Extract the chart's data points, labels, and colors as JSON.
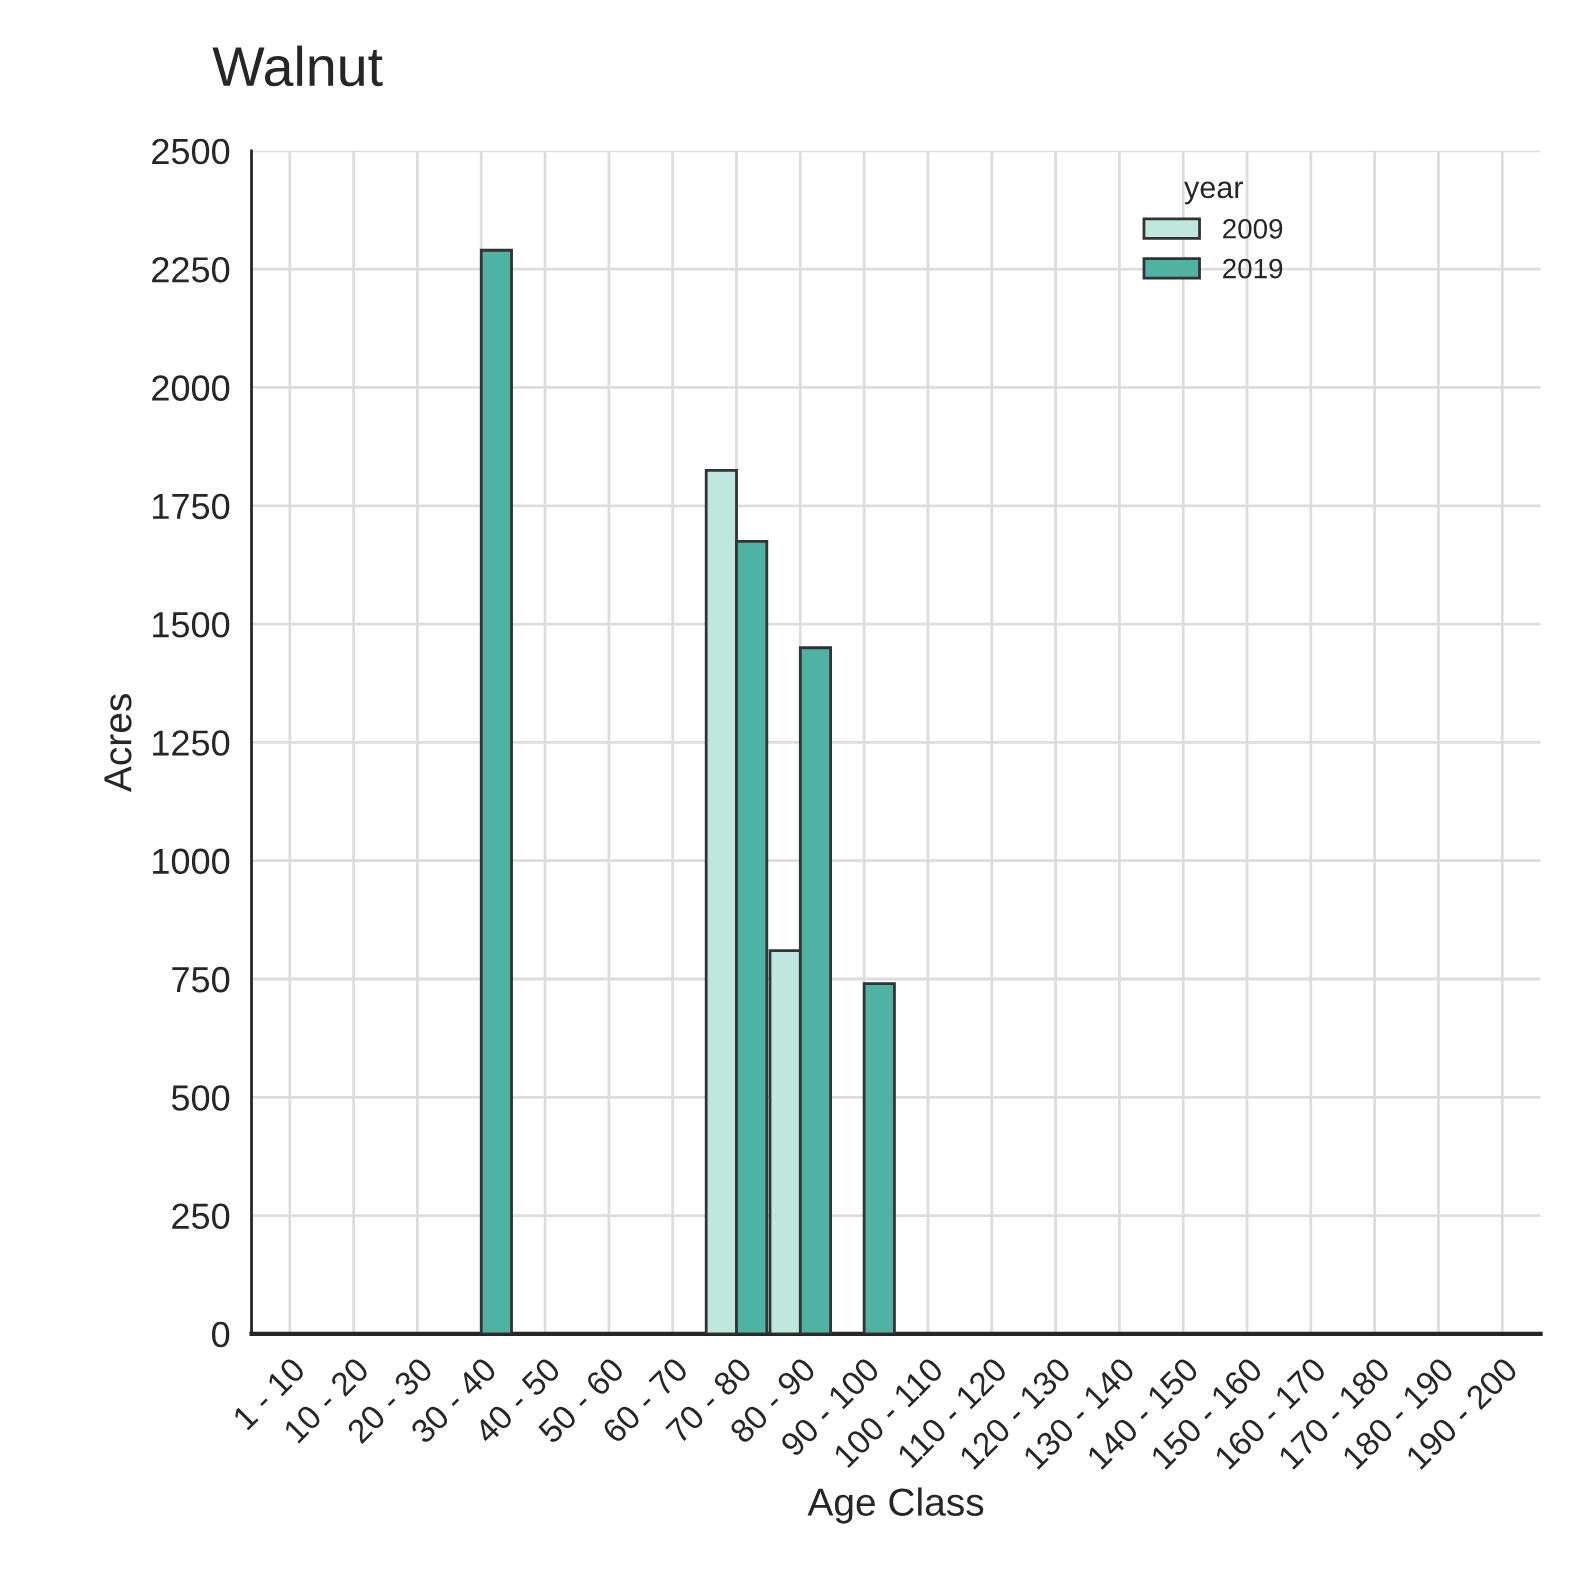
{
  "chart_data": {
    "type": "bar",
    "title": "Walnut",
    "xlabel": "Age Class",
    "ylabel": "Acres",
    "legend_title": "year",
    "categories": [
      "1 - 10",
      "10 - 20",
      "20 - 30",
      "30 - 40",
      "40 - 50",
      "50 - 60",
      "60 - 70",
      "70 - 80",
      "80 - 90",
      "90 - 100",
      "100 - 110",
      "110 - 120",
      "120 - 130",
      "130 - 140",
      "140 - 150",
      "150 - 160",
      "160 - 170",
      "170 - 180",
      "180 - 190",
      "190 - 200"
    ],
    "series": [
      {
        "name": "2009",
        "color": "#bfe6df",
        "values": [
          null,
          null,
          null,
          null,
          null,
          null,
          null,
          1825,
          810,
          null,
          null,
          null,
          null,
          null,
          null,
          null,
          null,
          null,
          null,
          null
        ]
      },
      {
        "name": "2019",
        "color": "#4fb3a4",
        "values": [
          null,
          null,
          null,
          2290,
          null,
          null,
          null,
          1675,
          1450,
          740,
          null,
          null,
          null,
          null,
          null,
          null,
          null,
          null,
          null,
          null
        ]
      }
    ],
    "ylim": [
      0,
      2500
    ],
    "yticks": [
      0,
      250,
      500,
      750,
      1000,
      1250,
      1500,
      1750,
      2000,
      2250,
      2500
    ],
    "grid": true,
    "legend": "top right"
  }
}
